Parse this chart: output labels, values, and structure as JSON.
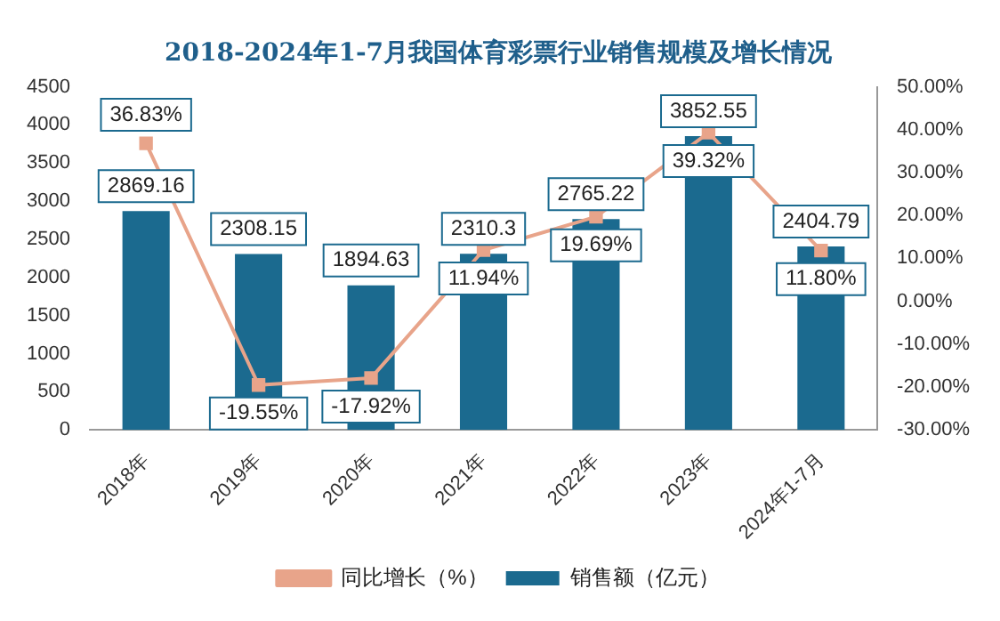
{
  "chart_data": {
    "type": "bar",
    "title": "2018-2024年1-7月我国体育彩票行业销售规模及增长情况",
    "categories": [
      "2018年",
      "2019年",
      "2020年",
      "2021年",
      "2022年",
      "2023年",
      "2024年1-7月"
    ],
    "series": [
      {
        "name": "销售额（亿元）",
        "color": "#1b6a8f",
        "values": [
          2869.16,
          2308.15,
          1894.63,
          2310.3,
          2765.22,
          3852.55,
          2404.79
        ],
        "value_labels": [
          "2869.16",
          "2308.15",
          "1894.63",
          "2310.3",
          "2765.22",
          "3852.55",
          "2404.79"
        ]
      },
      {
        "name": "同比增长（%）",
        "type": "line",
        "axis": "y2",
        "color": "#e8a48a",
        "values": [
          36.83,
          -19.55,
          -17.92,
          11.94,
          19.69,
          39.32,
          11.8
        ],
        "value_labels": [
          "36.83%",
          "-19.55%",
          "-17.92%",
          "11.94%",
          "19.69%",
          "39.32%",
          "11.80%"
        ]
      }
    ],
    "ylim": [
      0,
      4500
    ],
    "yticks": [
      0,
      500,
      1000,
      1500,
      2000,
      2500,
      3000,
      3500,
      4000,
      4500
    ],
    "y2lim": [
      -30,
      50
    ],
    "y2ticks": [
      {
        "value": -30,
        "label": "-30.00%"
      },
      {
        "value": -20,
        "label": "-20.00%"
      },
      {
        "value": -10,
        "label": "-10.00%"
      },
      {
        "value": 0,
        "label": "0.00%"
      },
      {
        "value": 10,
        "label": "10.00%"
      },
      {
        "value": 20,
        "label": "20.00%"
      },
      {
        "value": 30,
        "label": "30.00%"
      },
      {
        "value": 40,
        "label": "40.00%"
      },
      {
        "value": 50,
        "label": "50.00%"
      }
    ],
    "marker": "square",
    "legend": "bottom",
    "grid": false
  }
}
